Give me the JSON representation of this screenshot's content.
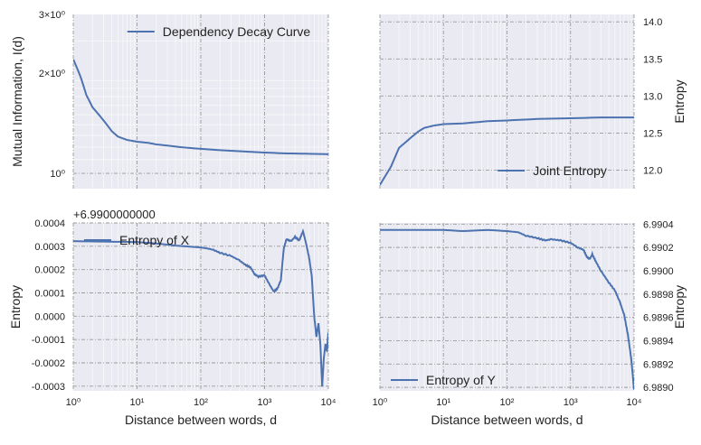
{
  "colors": {
    "line": "#4c72b0",
    "plot_background": "#eaeaf2",
    "major_grid": "#9a9a9a",
    "minor_grid": "#ffffff"
  },
  "chart_data": [
    {
      "id": "top-left",
      "type": "line",
      "xscale": "log",
      "yscale": "log",
      "xlim": [
        1,
        10000
      ],
      "ylim": [
        0.9,
        3.0
      ],
      "grid": true,
      "xlabel": "",
      "ylabel": "Mutual Information, I(d)",
      "ylabel_side": "left",
      "xtick_labels_shown": false,
      "x_ticks": [
        1,
        10,
        100,
        1000,
        10000
      ],
      "y_ticks": [
        {
          "value": 1,
          "label": "10⁰",
          "major": true
        },
        {
          "value": 2,
          "label": "2×10⁰",
          "major": false
        },
        {
          "value": 3,
          "label": "3×10⁰",
          "major": false
        }
      ],
      "legend": {
        "label": "Dependency Decay Curve",
        "position": "top-right"
      },
      "series": [
        {
          "name": "Dependency Decay Curve",
          "points": [
            [
              1,
              2.2
            ],
            [
              1.3,
              1.95
            ],
            [
              1.6,
              1.72
            ],
            [
              2,
              1.58
            ],
            [
              3,
              1.44
            ],
            [
              4,
              1.34
            ],
            [
              5,
              1.29
            ],
            [
              7,
              1.26
            ],
            [
              10,
              1.245
            ],
            [
              15,
              1.235
            ],
            [
              20,
              1.222
            ],
            [
              30,
              1.212
            ],
            [
              50,
              1.198
            ],
            [
              100,
              1.185
            ],
            [
              200,
              1.174
            ],
            [
              500,
              1.163
            ],
            [
              1000,
              1.155
            ],
            [
              2000,
              1.149
            ],
            [
              5000,
              1.145
            ],
            [
              10000,
              1.142
            ]
          ]
        }
      ]
    },
    {
      "id": "top-right",
      "type": "line",
      "xscale": "log",
      "yscale": "linear",
      "xlim": [
        1,
        10000
      ],
      "ylim": [
        11.75,
        14.1
      ],
      "grid": true,
      "xlabel": "",
      "ylabel": "Entropy",
      "ylabel_side": "right",
      "xtick_labels_shown": false,
      "x_ticks": [
        1,
        10,
        100,
        1000,
        10000
      ],
      "y_ticks": [
        {
          "value": 12.0,
          "label": "12.0"
        },
        {
          "value": 12.5,
          "label": "12.5"
        },
        {
          "value": 13.0,
          "label": "13.0"
        },
        {
          "value": 13.5,
          "label": "13.5"
        },
        {
          "value": 14.0,
          "label": "14.0"
        }
      ],
      "legend": {
        "label": "Joint Entropy",
        "position": "bottom-right"
      },
      "series": [
        {
          "name": "Joint Entropy",
          "points": [
            [
              1,
              11.8
            ],
            [
              1.5,
              12.05
            ],
            [
              2,
              12.3
            ],
            [
              3,
              12.43
            ],
            [
              4,
              12.52
            ],
            [
              5,
              12.57
            ],
            [
              7,
              12.6
            ],
            [
              10,
              12.62
            ],
            [
              20,
              12.63
            ],
            [
              50,
              12.66
            ],
            [
              100,
              12.67
            ],
            [
              300,
              12.69
            ],
            [
              1000,
              12.7
            ],
            [
              3000,
              12.71
            ],
            [
              10000,
              12.71
            ]
          ]
        }
      ]
    },
    {
      "id": "bottom-left",
      "type": "line",
      "xscale": "log",
      "yscale": "linear",
      "xlim": [
        1,
        10000
      ],
      "ylim": [
        -0.00032,
        0.0004
      ],
      "offset_text": "+6.9900000000",
      "grid": true,
      "xlabel": "Distance between words, d",
      "ylabel": "Entropy",
      "ylabel_side": "left",
      "xtick_labels_shown": true,
      "x_ticks": [
        1,
        10,
        100,
        1000,
        10000
      ],
      "y_ticks": [
        {
          "value": -0.0003,
          "label": "-0.0003"
        },
        {
          "value": -0.0002,
          "label": "-0.0002"
        },
        {
          "value": -0.0001,
          "label": "-0.0001"
        },
        {
          "value": 0.0,
          "label": "0.0000"
        },
        {
          "value": 0.0001,
          "label": "0.0001"
        },
        {
          "value": 0.0002,
          "label": "0.0002"
        },
        {
          "value": 0.0003,
          "label": "0.0003"
        },
        {
          "value": 0.0004,
          "label": "0.0004"
        }
      ],
      "legend": {
        "label": "Entropy of X",
        "position": "top-left"
      },
      "series": [
        {
          "name": "Entropy of X",
          "points": [
            [
              1,
              0.000322
            ],
            [
              3,
              0.00032
            ],
            [
              10,
              0.000318
            ],
            [
              20,
              0.000312
            ],
            [
              40,
              0.000303
            ],
            [
              70,
              0.000298
            ],
            [
              100,
              0.000295
            ],
            [
              150,
              0.000287
            ],
            [
              200,
              0.000272
            ],
            [
              300,
              0.000258
            ],
            [
              400,
              0.00024
            ],
            [
              500,
              0.00022
            ],
            [
              600,
              0.00021
            ],
            [
              700,
              0.00018
            ],
            [
              800,
              0.00017
            ],
            [
              1000,
              0.000175
            ],
            [
              1200,
              0.000135
            ],
            [
              1400,
              0.000105
            ],
            [
              1600,
              0.00012
            ],
            [
              1800,
              0.000155
            ],
            [
              2000,
              0.00029
            ],
            [
              2200,
              0.00033
            ],
            [
              2600,
              0.000322
            ],
            [
              3000,
              0.00034
            ],
            [
              3500,
              0.000325
            ],
            [
              4000,
              0.000365
            ],
            [
              4500,
              0.00031
            ],
            [
              5000,
              0.00025
            ],
            [
              5500,
              0.00017
            ],
            [
              6000,
              0.0
            ],
            [
              6500,
              -9e-05
            ],
            [
              7000,
              -3e-05
            ],
            [
              7500,
              -0.00012
            ],
            [
              8000,
              -0.0003
            ],
            [
              8500,
              -0.00018
            ],
            [
              9000,
              -0.00012
            ],
            [
              9500,
              -0.00015
            ],
            [
              10000,
              -7e-05
            ]
          ]
        }
      ]
    },
    {
      "id": "bottom-right",
      "type": "line",
      "xscale": "log",
      "yscale": "linear",
      "xlim": [
        1,
        10000
      ],
      "ylim": [
        6.98897,
        6.99041
      ],
      "grid": true,
      "xlabel": "Distance between words, d",
      "ylabel": "Entropy",
      "ylabel_side": "right",
      "xtick_labels_shown": true,
      "x_ticks": [
        1,
        10,
        100,
        1000,
        10000
      ],
      "y_ticks": [
        {
          "value": 6.989,
          "label": "6.9890"
        },
        {
          "value": 6.9892,
          "label": "6.9892"
        },
        {
          "value": 6.9894,
          "label": "6.9894"
        },
        {
          "value": 6.9896,
          "label": "6.9896"
        },
        {
          "value": 6.9898,
          "label": "6.9898"
        },
        {
          "value": 6.99,
          "label": "6.9900"
        },
        {
          "value": 6.9902,
          "label": "6.9902"
        },
        {
          "value": 6.9904,
          "label": "6.9904"
        }
      ],
      "legend": {
        "label": "Entropy of Y",
        "position": "bottom-left"
      },
      "series": [
        {
          "name": "Entropy of Y",
          "points": [
            [
              1,
              6.99035
            ],
            [
              3,
              6.99035
            ],
            [
              10,
              6.99035
            ],
            [
              20,
              6.99034
            ],
            [
              50,
              6.99035
            ],
            [
              100,
              6.99034
            ],
            [
              150,
              6.99033
            ],
            [
              200,
              6.9903
            ],
            [
              300,
              6.99028
            ],
            [
              400,
              6.99026
            ],
            [
              500,
              6.99027
            ],
            [
              700,
              6.99026
            ],
            [
              1000,
              6.99024
            ],
            [
              1300,
              6.9902
            ],
            [
              1600,
              6.99018
            ],
            [
              1800,
              6.99012
            ],
            [
              2000,
              6.9901
            ],
            [
              2200,
              6.99014
            ],
            [
              2500,
              6.99008
            ],
            [
              3000,
              6.99
            ],
            [
              4000,
              6.9899
            ],
            [
              5000,
              6.98983
            ],
            [
              6000,
              6.98973
            ],
            [
              7000,
              6.98962
            ],
            [
              8000,
              6.98945
            ],
            [
              9000,
              6.98925
            ],
            [
              10000,
              6.98898
            ]
          ]
        }
      ]
    }
  ]
}
